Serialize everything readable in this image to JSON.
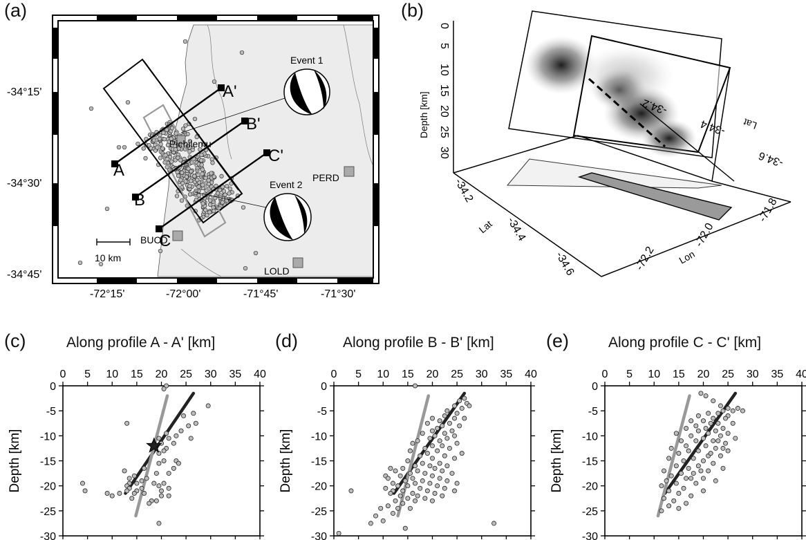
{
  "figure": {
    "panels": {
      "a": "(a)",
      "b": "(b)",
      "c": "(c)",
      "d": "(d)",
      "e": "(e)"
    }
  },
  "map": {
    "lat_ticks": [
      "-34°15'",
      "-34°30'",
      "-34°45'"
    ],
    "lon_ticks": [
      "-72°15'",
      "-72°00'",
      "-71°45'",
      "-71°30'"
    ],
    "stations": [
      "PERD",
      "BUCD",
      "LOLD"
    ],
    "town": "Pichilemu",
    "events": [
      "Event 1",
      "Event 2"
    ],
    "profiles": {
      "a": [
        "A",
        "A'"
      ],
      "b": [
        "B",
        "B'"
      ],
      "c": [
        "C",
        "C'"
      ]
    },
    "scale_label": "10 km"
  },
  "block3d": {
    "depth_ticks": [
      "0",
      "5",
      "10",
      "15",
      "20",
      "25",
      "30"
    ],
    "depth_label": "Depth [km]",
    "lat_ticks": [
      "-34.2",
      "-34.4",
      "-34.6"
    ],
    "lat_label": "Lat",
    "lon_ticks": [
      "-72.2",
      "-72.0",
      "-71.8"
    ],
    "lon_label": "Lon",
    "right_lat_ticks": [
      "-34.2",
      "-34.4",
      "-34.6"
    ],
    "right_lat_label": "Lat"
  },
  "chart_data": [
    {
      "type": "scatter",
      "title": "Along profile A - A' [km]",
      "xlabel": "",
      "ylabel": "Depth [km]",
      "xlim": [
        0,
        40
      ],
      "ylim": [
        -30,
        0
      ],
      "x_ticks": [
        "0",
        "5",
        "10",
        "15",
        "20",
        "25",
        "30",
        "35",
        "40"
      ],
      "y_ticks": [
        "0",
        "-5",
        "-10",
        "-15",
        "-20",
        "-25",
        "-30"
      ],
      "lines": [
        {
          "color": "#222222",
          "x": [
            12.7,
            26.5
          ],
          "y": [
            -21.5,
            -1.5
          ]
        },
        {
          "color": "#999999",
          "x": [
            14.8,
            21.2
          ],
          "y": [
            -26.0,
            -2.0
          ]
        }
      ],
      "star": {
        "x": 18.5,
        "y": -12.0
      },
      "points": [
        [
          21,
          0
        ],
        [
          20.5,
          -0.6
        ],
        [
          29.5,
          -4
        ],
        [
          26.5,
          -5.5
        ],
        [
          24.5,
          -6
        ],
        [
          27,
          -7.5
        ],
        [
          13,
          -7.5
        ],
        [
          25.5,
          -8
        ],
        [
          24,
          -9
        ],
        [
          21,
          -9.5
        ],
        [
          23,
          -10
        ],
        [
          26,
          -10.5
        ],
        [
          19.5,
          -10.5
        ],
        [
          21.5,
          -10.5
        ],
        [
          20,
          -11.5
        ],
        [
          18.5,
          -11.5
        ],
        [
          22.5,
          -11.5
        ],
        [
          21,
          -12.5
        ],
        [
          20.5,
          -13
        ],
        [
          19.5,
          -13.5
        ],
        [
          20.5,
          -15
        ],
        [
          23,
          -15
        ],
        [
          19.5,
          -15.5
        ],
        [
          16.5,
          -16.5
        ],
        [
          23.5,
          -15.5
        ],
        [
          22.5,
          -16.5
        ],
        [
          12.5,
          -17
        ],
        [
          19,
          -17.5
        ],
        [
          21.5,
          -17.5
        ],
        [
          14.5,
          -18
        ],
        [
          17,
          -18.5
        ],
        [
          13.5,
          -18.5
        ],
        [
          16,
          -19
        ],
        [
          13.5,
          -19.5
        ],
        [
          15,
          -19.5
        ],
        [
          4,
          -19.5
        ],
        [
          18.5,
          -19.5
        ],
        [
          19.5,
          -20
        ],
        [
          20.5,
          -19.5
        ],
        [
          13,
          -20
        ],
        [
          13.5,
          -20.5
        ],
        [
          16,
          -20.5
        ],
        [
          4.5,
          -21
        ],
        [
          21.5,
          -20.5
        ],
        [
          15,
          -21
        ],
        [
          20,
          -21
        ],
        [
          13,
          -21
        ],
        [
          14.5,
          -21.5
        ],
        [
          11.5,
          -21.5
        ],
        [
          9,
          -21.5
        ],
        [
          16.5,
          -21.5
        ],
        [
          10,
          -22
        ],
        [
          20,
          -22
        ],
        [
          21.5,
          -22
        ],
        [
          14,
          -22.5
        ],
        [
          18,
          -23
        ],
        [
          19,
          -23
        ],
        [
          17.5,
          -23.5
        ],
        [
          19.5,
          -27.5
        ]
      ]
    },
    {
      "type": "scatter",
      "title": "Along profile B - B' [km]",
      "xlabel": "",
      "ylabel": "Depth [km]",
      "xlim": [
        0,
        40
      ],
      "ylim": [
        -30,
        0
      ],
      "x_ticks": [
        "0",
        "5",
        "10",
        "15",
        "20",
        "25",
        "30",
        "35",
        "40"
      ],
      "y_ticks": [
        "0",
        "-5",
        "-10",
        "-15",
        "-20",
        "-25",
        "-30"
      ],
      "lines": [
        {
          "color": "#222222",
          "x": [
            12.2,
            26.5
          ],
          "y": [
            -21.5,
            -1.5
          ]
        },
        {
          "color": "#999999",
          "x": [
            13.0,
            19.2
          ],
          "y": [
            -26.0,
            -2.0
          ]
        }
      ],
      "points": [
        [
          16.5,
          0
        ],
        [
          26.5,
          -2.5
        ],
        [
          25.5,
          -3
        ],
        [
          27,
          -3.5
        ],
        [
          24.5,
          -4
        ],
        [
          27.5,
          -4
        ],
        [
          26,
          -4.5
        ],
        [
          23,
          -5
        ],
        [
          25,
          -5.5
        ],
        [
          22.5,
          -6
        ],
        [
          24.5,
          -6.5
        ],
        [
          26.5,
          -6.5
        ],
        [
          20,
          -6.5
        ],
        [
          21.5,
          -7
        ],
        [
          23.5,
          -7.5
        ],
        [
          19,
          -7.5
        ],
        [
          25.5,
          -8
        ],
        [
          22,
          -8
        ],
        [
          21,
          -8.5
        ],
        [
          24,
          -9
        ],
        [
          20,
          -9
        ],
        [
          18,
          -9.5
        ],
        [
          22.5,
          -9.5
        ],
        [
          20.5,
          -10
        ],
        [
          24.5,
          -10
        ],
        [
          23,
          -10.5
        ],
        [
          19.5,
          -10.5
        ],
        [
          21.5,
          -11
        ],
        [
          17,
          -11
        ],
        [
          16,
          -11.5
        ],
        [
          25,
          -11.5
        ],
        [
          20,
          -12
        ],
        [
          22,
          -12
        ],
        [
          18.5,
          -12.5
        ],
        [
          23.5,
          -12.5
        ],
        [
          15.5,
          -13
        ],
        [
          21,
          -13
        ],
        [
          19,
          -13.5
        ],
        [
          26,
          -13.5
        ],
        [
          17.5,
          -14
        ],
        [
          22.5,
          -14
        ],
        [
          20,
          -14.5
        ],
        [
          24.5,
          -14.5
        ],
        [
          15,
          -15
        ],
        [
          18,
          -15.5
        ],
        [
          21.5,
          -15.5
        ],
        [
          16.5,
          -16
        ],
        [
          19.5,
          -16
        ],
        [
          23,
          -16
        ],
        [
          11.5,
          -16.5
        ],
        [
          14,
          -16.5
        ],
        [
          20.5,
          -16.5
        ],
        [
          17,
          -17
        ],
        [
          22,
          -17
        ],
        [
          12.5,
          -17
        ],
        [
          15.5,
          -17.5
        ],
        [
          18.5,
          -17.5
        ],
        [
          24,
          -17.5
        ],
        [
          10.5,
          -18
        ],
        [
          13.5,
          -18
        ],
        [
          20,
          -18
        ],
        [
          16,
          -18.5
        ],
        [
          21.5,
          -18.5
        ],
        [
          11,
          -18.5
        ],
        [
          14.5,
          -19
        ],
        [
          18,
          -19
        ],
        [
          23,
          -19
        ],
        [
          12,
          -19.5
        ],
        [
          16.5,
          -19.5
        ],
        [
          19.5,
          -19.5
        ],
        [
          25,
          -19.5
        ],
        [
          13,
          -20
        ],
        [
          15,
          -20
        ],
        [
          21,
          -20
        ],
        [
          17.5,
          -20.5
        ],
        [
          10.5,
          -20.5
        ],
        [
          22.5,
          -20.5
        ],
        [
          12,
          -21
        ],
        [
          14,
          -21
        ],
        [
          19,
          -21
        ],
        [
          24.5,
          -21
        ],
        [
          3.5,
          -21
        ],
        [
          16,
          -21.5
        ],
        [
          20.5,
          -21.5
        ],
        [
          11.5,
          -21.5
        ],
        [
          13.5,
          -22
        ],
        [
          17,
          -22
        ],
        [
          22,
          -22
        ],
        [
          15,
          -22.5
        ],
        [
          18.5,
          -22.5
        ],
        [
          12.5,
          -23
        ],
        [
          16.5,
          -23
        ],
        [
          20,
          -23
        ],
        [
          14,
          -23.5
        ],
        [
          11,
          -24
        ],
        [
          13,
          -24.5
        ],
        [
          15.5,
          -24.5
        ],
        [
          9.5,
          -24.5
        ],
        [
          12,
          -25.5
        ],
        [
          8.5,
          -26
        ],
        [
          10,
          -27
        ],
        [
          7.5,
          -27.5
        ],
        [
          32.5,
          -27.5
        ],
        [
          14.5,
          -28.5
        ],
        [
          1,
          -29.5
        ]
      ]
    },
    {
      "type": "scatter",
      "title": "Along profile C - C' [km]",
      "xlabel": "",
      "ylabel": "Depth [km]",
      "xlim": [
        0,
        40
      ],
      "ylim": [
        -30,
        0
      ],
      "x_ticks": [
        "0",
        "5",
        "10",
        "15",
        "20",
        "25",
        "30",
        "35",
        "40"
      ],
      "y_ticks": [
        "0",
        "-5",
        "-10",
        "-15",
        "-20",
        "-25",
        "-30"
      ],
      "lines": [
        {
          "color": "#222222",
          "x": [
            12.2,
            26.5
          ],
          "y": [
            -21.5,
            -1.5
          ]
        },
        {
          "color": "#999999",
          "x": [
            10.8,
            17.2
          ],
          "y": [
            -26.0,
            -2.0
          ]
        }
      ],
      "points": [
        [
          19.5,
          -1.5
        ],
        [
          20.5,
          -2
        ],
        [
          22,
          -3
        ],
        [
          23.5,
          -4
        ],
        [
          25,
          -4.5
        ],
        [
          27,
          -4.5
        ],
        [
          24,
          -5
        ],
        [
          26,
          -5
        ],
        [
          28,
          -5
        ],
        [
          21,
          -5.5
        ],
        [
          23,
          -5.5
        ],
        [
          25,
          -6
        ],
        [
          19,
          -6
        ],
        [
          22,
          -6.5
        ],
        [
          24.5,
          -6.5
        ],
        [
          17.5,
          -7
        ],
        [
          20,
          -7
        ],
        [
          23,
          -7.5
        ],
        [
          21.5,
          -7.5
        ],
        [
          26,
          -7.5
        ],
        [
          18.5,
          -8
        ],
        [
          20.5,
          -8.5
        ],
        [
          24,
          -8.5
        ],
        [
          16.5,
          -8.5
        ],
        [
          22.5,
          -9
        ],
        [
          19,
          -9
        ],
        [
          25,
          -9.5
        ],
        [
          14.5,
          -9.5
        ],
        [
          21,
          -9.5
        ],
        [
          17.5,
          -10
        ],
        [
          23.5,
          -10
        ],
        [
          20,
          -10.5
        ],
        [
          26.5,
          -10.5
        ],
        [
          15.5,
          -11
        ],
        [
          22,
          -11
        ],
        [
          18.5,
          -11
        ],
        [
          24.5,
          -11.5
        ],
        [
          16.5,
          -12
        ],
        [
          20.5,
          -12
        ],
        [
          13.5,
          -12.5
        ],
        [
          22.5,
          -12.5
        ],
        [
          19,
          -13
        ],
        [
          17,
          -13
        ],
        [
          25,
          -13
        ],
        [
          15,
          -13.5
        ],
        [
          21,
          -14
        ],
        [
          23.5,
          -14
        ],
        [
          18,
          -14.5
        ],
        [
          13,
          -14.5
        ],
        [
          20,
          -15
        ],
        [
          16,
          -15
        ],
        [
          22,
          -15.5
        ],
        [
          14.5,
          -16
        ],
        [
          19,
          -16
        ],
        [
          17,
          -16.5
        ],
        [
          24,
          -16.5
        ],
        [
          12,
          -17
        ],
        [
          21,
          -17
        ],
        [
          15.5,
          -17.5
        ],
        [
          18,
          -17.5
        ],
        [
          13.5,
          -18
        ],
        [
          20,
          -18.5
        ],
        [
          16.5,
          -18.5
        ],
        [
          12.5,
          -19
        ],
        [
          22.5,
          -19
        ],
        [
          14.5,
          -19.5
        ],
        [
          18.5,
          -19.5
        ],
        [
          11.5,
          -20
        ],
        [
          16,
          -20.5
        ],
        [
          13,
          -21
        ],
        [
          20,
          -21
        ],
        [
          15,
          -21.5
        ],
        [
          17.5,
          -22
        ],
        [
          12,
          -22.5
        ],
        [
          14,
          -23
        ],
        [
          16.5,
          -23.5
        ],
        [
          13,
          -24
        ],
        [
          15,
          -24.5
        ],
        [
          11.5,
          -25
        ],
        [
          17.5,
          -18.5
        ],
        [
          19.5,
          -17
        ],
        [
          23,
          -11
        ],
        [
          21.5,
          -13.5
        ],
        [
          24,
          -12.5
        ]
      ]
    }
  ]
}
